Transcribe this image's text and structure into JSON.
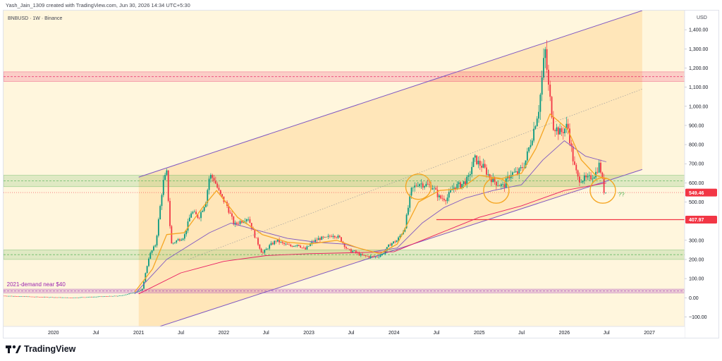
{
  "header": {
    "attribution": "Yash_Jain_1309 created with TradingView.com, Jun 30, 2026 14:34 UTC+5:30"
  },
  "footer": {
    "brand": "TradingView"
  },
  "chart_data": {
    "type": "candlestick",
    "symbol_label": "BNBUSD · 1W · Binance",
    "currency_label": "USD",
    "x_axis": {
      "range": [
        "2019-06-01",
        "2027-06-01"
      ],
      "ticks": [
        {
          "date": "2020-01-01",
          "label": "2020"
        },
        {
          "date": "2020-07-01",
          "label": "Jul"
        },
        {
          "date": "2021-01-01",
          "label": "2021"
        },
        {
          "date": "2021-07-01",
          "label": "Jul"
        },
        {
          "date": "2022-01-01",
          "label": "2022"
        },
        {
          "date": "2022-07-01",
          "label": "Jul"
        },
        {
          "date": "2023-01-01",
          "label": "2023"
        },
        {
          "date": "2023-07-01",
          "label": "Jul"
        },
        {
          "date": "2024-01-01",
          "label": "2024"
        },
        {
          "date": "2024-07-01",
          "label": "Jul"
        },
        {
          "date": "2025-01-01",
          "label": "2025"
        },
        {
          "date": "2025-07-01",
          "label": "Jul"
        },
        {
          "date": "2026-01-01",
          "label": "2026"
        },
        {
          "date": "2026-07-01",
          "label": "Jul"
        },
        {
          "date": "2027-01-01",
          "label": "2027"
        }
      ]
    },
    "y_axis": {
      "range": [
        -150,
        1500
      ],
      "ticks": [
        {
          "value": 1400,
          "label": "1,400.00"
        },
        {
          "value": 1300,
          "label": "1,300.00"
        },
        {
          "value": 1200,
          "label": "1,200.00"
        },
        {
          "value": 1100,
          "label": "1,100.00"
        },
        {
          "value": 1000,
          "label": "1,000.00"
        },
        {
          "value": 900,
          "label": "900.00"
        },
        {
          "value": 800,
          "label": "800.00"
        },
        {
          "value": 700,
          "label": "700.00"
        },
        {
          "value": 600,
          "label": "600.00"
        },
        {
          "value": 500,
          "label": "500.00"
        },
        {
          "value": 300,
          "label": "300.00"
        },
        {
          "value": 200,
          "label": "200.00"
        },
        {
          "value": 100,
          "label": "100.00"
        },
        {
          "value": 0,
          "label": "0.00"
        },
        {
          "value": -100,
          "label": "−100.00"
        }
      ]
    },
    "price_labels": [
      {
        "value": 549.46,
        "label": "549.46",
        "color": "#f23645"
      },
      {
        "value": 407.97,
        "label": "407.97",
        "color": "#f23645"
      }
    ],
    "price_anchors": [
      [
        "2019-06-01",
        10
      ],
      [
        "2019-10-01",
        5
      ],
      [
        "2020-03-15",
        0
      ],
      [
        "2020-07-01",
        5
      ],
      [
        "2020-10-15",
        10
      ],
      [
        "2020-12-20",
        30
      ],
      [
        "2021-01-15",
        40
      ],
      [
        "2021-02-15",
        220
      ],
      [
        "2021-03-15",
        280
      ],
      [
        "2021-04-15",
        600
      ],
      [
        "2021-05-01",
        650
      ],
      [
        "2021-05-20",
        280
      ],
      [
        "2021-06-15",
        300
      ],
      [
        "2021-07-15",
        320
      ],
      [
        "2021-08-15",
        450
      ],
      [
        "2021-09-15",
        420
      ],
      [
        "2021-10-15",
        500
      ],
      [
        "2021-11-01",
        640
      ],
      [
        "2021-11-20",
        620
      ],
      [
        "2021-12-15",
        540
      ],
      [
        "2022-01-15",
        480
      ],
      [
        "2022-02-15",
        380
      ],
      [
        "2022-03-15",
        400
      ],
      [
        "2022-04-15",
        420
      ],
      [
        "2022-05-15",
        320
      ],
      [
        "2022-06-15",
        230
      ],
      [
        "2022-07-15",
        270
      ],
      [
        "2022-08-15",
        300
      ],
      [
        "2022-09-15",
        280
      ],
      [
        "2022-10-15",
        270
      ],
      [
        "2022-11-15",
        280
      ],
      [
        "2022-12-15",
        250
      ],
      [
        "2023-01-15",
        290
      ],
      [
        "2023-02-15",
        310
      ],
      [
        "2023-03-15",
        310
      ],
      [
        "2023-04-15",
        330
      ],
      [
        "2023-05-15",
        310
      ],
      [
        "2023-06-15",
        250
      ],
      [
        "2023-07-15",
        240
      ],
      [
        "2023-08-15",
        220
      ],
      [
        "2023-09-15",
        215
      ],
      [
        "2023-10-15",
        212
      ],
      [
        "2023-11-15",
        230
      ],
      [
        "2023-12-15",
        280
      ],
      [
        "2024-01-15",
        300
      ],
      [
        "2024-02-15",
        360
      ],
      [
        "2024-03-15",
        560
      ],
      [
        "2024-04-15",
        600
      ],
      [
        "2024-05-15",
        590
      ],
      [
        "2024-06-15",
        580
      ],
      [
        "2024-07-15",
        520
      ],
      [
        "2024-08-15",
        520
      ],
      [
        "2024-09-15",
        580
      ],
      [
        "2024-10-15",
        590
      ],
      [
        "2024-11-15",
        620
      ],
      [
        "2024-12-10",
        730
      ],
      [
        "2024-12-31",
        700
      ],
      [
        "2025-01-20",
        680
      ],
      [
        "2025-02-15",
        630
      ],
      [
        "2025-03-15",
        600
      ],
      [
        "2025-04-15",
        580
      ],
      [
        "2025-05-15",
        650
      ],
      [
        "2025-06-15",
        650
      ],
      [
        "2025-07-15",
        700
      ],
      [
        "2025-08-15",
        840
      ],
      [
        "2025-09-15",
        1000
      ],
      [
        "2025-10-10",
        1300
      ],
      [
        "2025-10-25",
        1100
      ],
      [
        "2025-11-15",
        900
      ],
      [
        "2025-12-15",
        860
      ],
      [
        "2026-01-15",
        900
      ],
      [
        "2026-02-10",
        700
      ],
      [
        "2026-03-01",
        620
      ],
      [
        "2026-04-15",
        620
      ],
      [
        "2026-05-15",
        650
      ],
      [
        "2026-06-01",
        700
      ],
      [
        "2026-06-20",
        560
      ],
      [
        "2026-06-30",
        549.46
      ]
    ],
    "moving_average_fast": [
      [
        "2020-12-15",
        30
      ],
      [
        "2021-03-01",
        150
      ],
      [
        "2021-05-01",
        330
      ],
      [
        "2021-07-15",
        340
      ],
      [
        "2021-10-01",
        470
      ],
      [
        "2021-12-01",
        560
      ],
      [
        "2022-03-01",
        420
      ],
      [
        "2022-06-15",
        330
      ],
      [
        "2022-10-01",
        290
      ],
      [
        "2023-01-01",
        280
      ],
      [
        "2023-05-01",
        300
      ],
      [
        "2023-08-01",
        260
      ],
      [
        "2023-11-01",
        230
      ],
      [
        "2024-01-15",
        280
      ],
      [
        "2024-04-15",
        500
      ],
      [
        "2024-07-15",
        560
      ],
      [
        "2024-10-15",
        570
      ],
      [
        "2025-01-01",
        640
      ],
      [
        "2025-04-01",
        620
      ],
      [
        "2025-07-01",
        650
      ],
      [
        "2025-09-01",
        780
      ],
      [
        "2025-11-01",
        960
      ],
      [
        "2026-01-15",
        880
      ],
      [
        "2026-03-15",
        720
      ],
      [
        "2026-05-15",
        640
      ],
      [
        "2026-06-30",
        620
      ]
    ],
    "moving_average_slow": [
      [
        "2020-12-15",
        20
      ],
      [
        "2021-05-01",
        200
      ],
      [
        "2021-08-01",
        270
      ],
      [
        "2021-11-01",
        340
      ],
      [
        "2022-02-01",
        390
      ],
      [
        "2022-06-01",
        350
      ],
      [
        "2022-10-01",
        310
      ],
      [
        "2023-02-01",
        290
      ],
      [
        "2023-06-01",
        280
      ],
      [
        "2023-10-01",
        240
      ],
      [
        "2024-01-15",
        260
      ],
      [
        "2024-05-01",
        390
      ],
      [
        "2024-08-01",
        470
      ],
      [
        "2024-11-01",
        520
      ],
      [
        "2025-03-01",
        560
      ],
      [
        "2025-07-01",
        590
      ],
      [
        "2025-10-01",
        720
      ],
      [
        "2026-01-01",
        820
      ],
      [
        "2026-04-01",
        740
      ],
      [
        "2026-06-30",
        710
      ]
    ],
    "moving_average_long": [
      [
        "2021-01-01",
        20
      ],
      [
        "2021-07-01",
        130
      ],
      [
        "2022-01-01",
        190
      ],
      [
        "2022-07-01",
        220
      ],
      [
        "2023-01-01",
        230
      ],
      [
        "2023-07-01",
        235
      ],
      [
        "2024-01-01",
        240
      ],
      [
        "2024-07-01",
        330
      ],
      [
        "2025-01-01",
        420
      ],
      [
        "2025-07-01",
        480
      ],
      [
        "2026-01-01",
        560
      ],
      [
        "2026-06-30",
        600
      ]
    ],
    "channel": {
      "upper": [
        [
          "2021-01-01",
          630
        ],
        [
          "2026-12-01",
          1500
        ]
      ],
      "lower": [
        [
          "2021-04-01",
          -150
        ],
        [
          "2026-12-01",
          670
        ]
      ],
      "midline": [
        [
          "2021-08-01",
          200
        ],
        [
          "2026-12-01",
          1090
        ]
      ],
      "fill_from": "2021-01-01",
      "fill_to": "2026-12-01"
    },
    "zones": [
      {
        "kind": "resistance",
        "from": 1130,
        "to": 1180,
        "color": "#e91e63"
      },
      {
        "kind": "support",
        "from": 580,
        "to": 640,
        "color": "#4caf50"
      },
      {
        "kind": "support",
        "from": 200,
        "to": 250,
        "color": "#4caf50"
      },
      {
        "kind": "demand",
        "from": 25,
        "to": 45,
        "color": "#9c27b0"
      }
    ],
    "horizontal_lines": [
      {
        "value": 407.97,
        "from": "2024-07-01",
        "color": "#f23645"
      }
    ],
    "circles": [
      {
        "date": "2024-04-15",
        "value": 580
      },
      {
        "date": "2025-03-15",
        "value": 560
      },
      {
        "date": "2026-06-15",
        "value": 560
      }
    ],
    "annotations": [
      {
        "text": "2021-demand near $40",
        "date": "2019-06-15",
        "value": 60,
        "color": "#9c27b0"
      },
      {
        "text": "??",
        "date": "2026-08-20",
        "value": 530,
        "color": "#4caf50"
      }
    ],
    "grid": false
  }
}
